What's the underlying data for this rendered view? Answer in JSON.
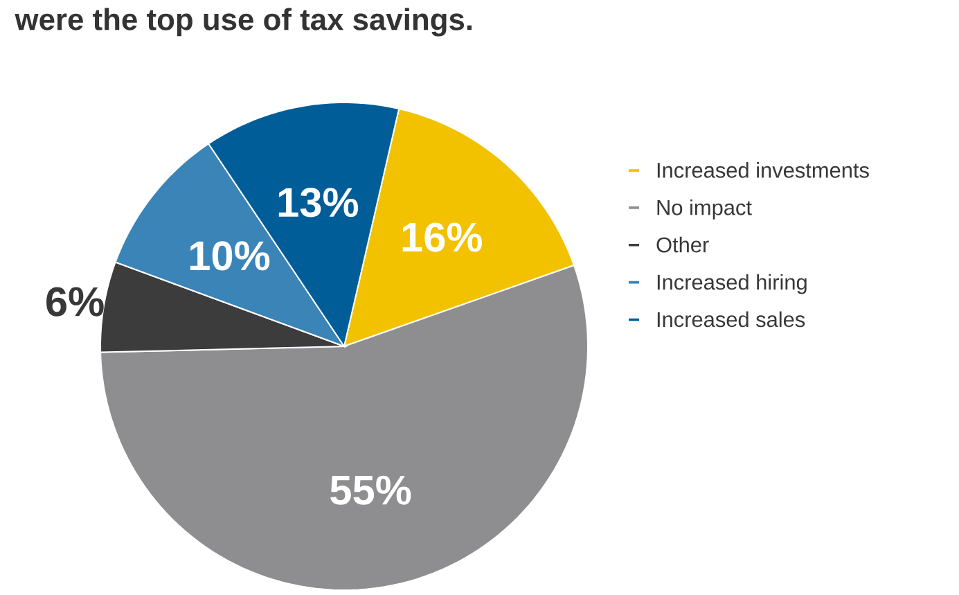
{
  "chart_data": {
    "type": "pie",
    "title": "were the top use of tax savings.",
    "categories": [
      "Increased investments",
      "No impact",
      "Other",
      "Increased hiring",
      "Increased sales"
    ],
    "values": [
      16,
      55,
      6,
      10,
      13
    ],
    "colors": [
      "#f2c200",
      "#8e8d90",
      "#3c3c3c",
      "#3a84b8",
      "#005d98"
    ],
    "value_labels": [
      "16%",
      "55%",
      "6%",
      "10%",
      "13%"
    ],
    "legend": "right"
  }
}
